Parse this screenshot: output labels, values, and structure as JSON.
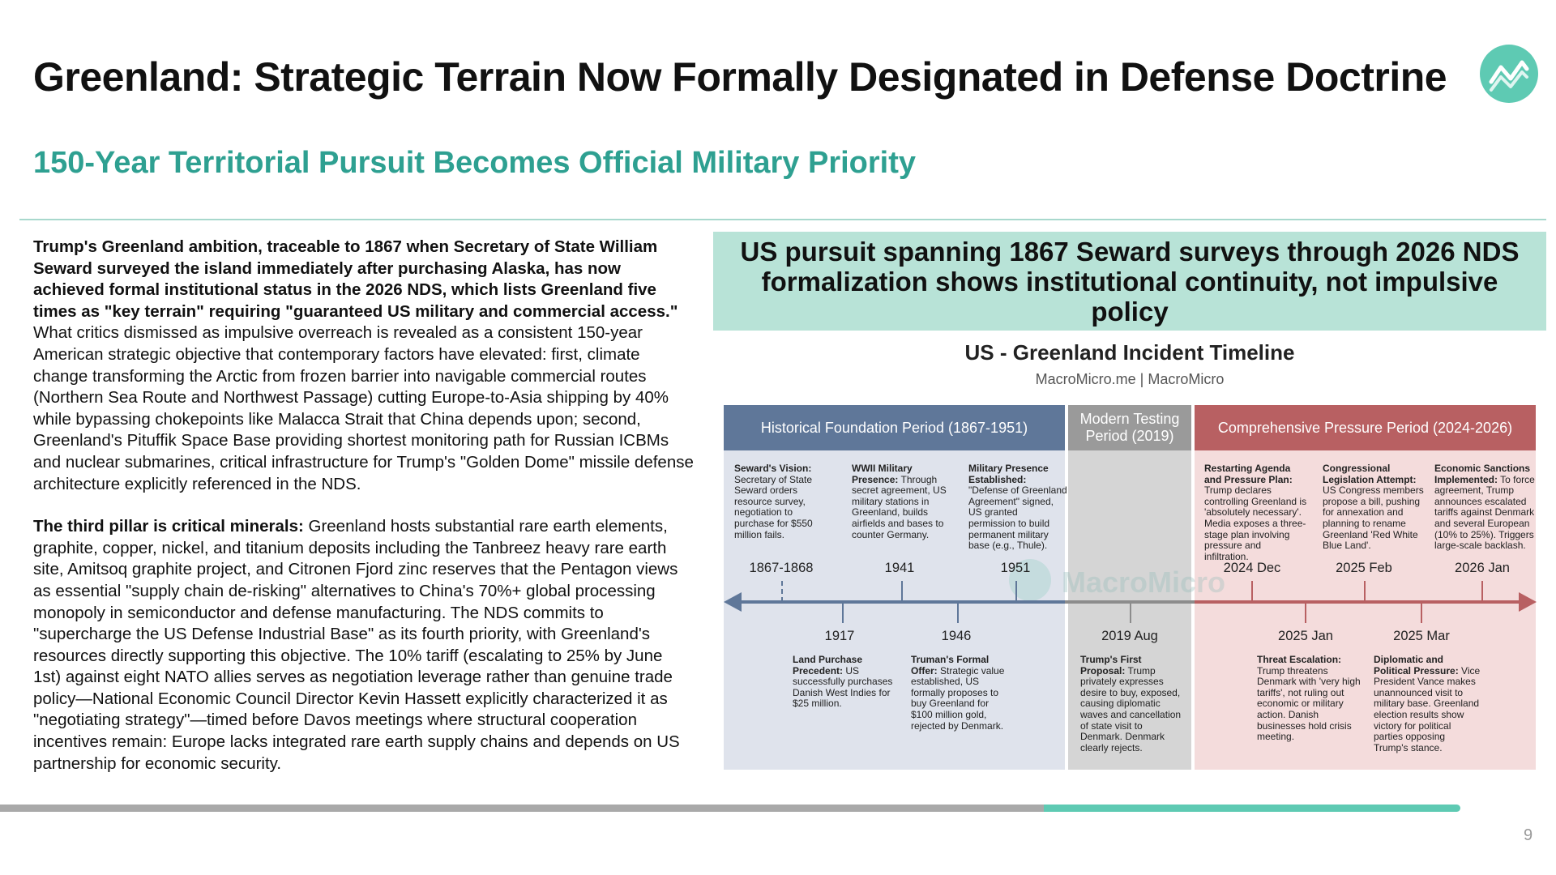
{
  "slide": {
    "title": "Greenland: Strategic Terrain Now Formally Designated in Defense Doctrine",
    "subtitle": "150-Year Territorial Pursuit Becomes Official Military Priority",
    "page_number": "9",
    "progress_fraction": 0.94,
    "accent_color": "#2ea091",
    "logo_icon": "trend-line-chart-icon"
  },
  "body": {
    "p1_bold": "Trump's Greenland ambition, traceable to 1867 when Secretary of State William Seward surveyed the island immediately after purchasing Alaska, has now achieved formal institutional status in the 2026 NDS, which lists Greenland five times as \"key terrain\" requiring \"guaranteed US military and commercial access.\"",
    "p1_rest": " What critics dismissed as impulsive overreach is revealed as a consistent 150-year American strategic objective that contemporary factors have elevated: first, climate change transforming the Arctic from frozen barrier into navigable commercial routes (Northern Sea Route and Northwest Passage) cutting Europe-to-Asia shipping by 40% while bypassing chokepoints like Malacca Strait that China depends upon; second, Greenland's Pituffik Space Base providing shortest monitoring path for Russian ICBMs and nuclear submarines, critical infrastructure for Trump's \"Golden Dome\" missile defense architecture explicitly referenced in the NDS.",
    "p2_bold": "The third pillar is critical minerals:",
    "p2_rest": " Greenland hosts substantial rare earth elements, graphite, copper, nickel, and titanium deposits including the Tanbreez heavy rare earth site, Amitsoq graphite project, and Citronen Fjord zinc reserves that the Pentagon views as essential \"supply chain de-risking\" alternatives to China's 70%+ global processing monopoly in semiconductor and defense manufacturing. The NDS commits to \"supercharge the US Defense Industrial Base\" as its fourth priority, with Greenland's resources directly supporting this objective. The 10% tariff (escalating to 25% by June 1st) against eight NATO allies serves as negotiation leverage rather than genuine trade policy—National Economic Council Director Kevin Hassett explicitly characterized it as \"negotiating strategy\"—timed before Davos meetings where structural cooperation incentives remain: Europe lacks integrated rare earth supply chains and depends on US partnership for economic security."
  },
  "banner": {
    "text": "US pursuit spanning 1867 Seward surveys through 2026 NDS formalization shows institutional continuity, not impulsive policy"
  },
  "timeline": {
    "title": "US - Greenland Incident Timeline",
    "source": "MacroMicro.me | MacroMicro",
    "watermark": "MacroMicro",
    "periods": [
      {
        "label": "Historical Foundation Period (1867-1951)",
        "color": "#5f7799"
      },
      {
        "label": "Modern Testing Period (2019)",
        "color": "#9a9a9a"
      },
      {
        "label": "Comprehensive Pressure Period (2024-2026)",
        "color": "#b86062"
      }
    ],
    "events": [
      {
        "date": "1867-1868",
        "heading": "Seward's Vision:",
        "text": " Secretary of State Seward orders resource survey, negotiation to purchase for $550 million fails."
      },
      {
        "date": "1917",
        "heading": "Land Purchase Precedent:",
        "text": " US successfully purchases Danish West Indies for $25 million."
      },
      {
        "date": "1941",
        "heading": "WWII Military Presence:",
        "text": " Through secret agreement, US military stations in Greenland, builds airfields and bases to counter Germany."
      },
      {
        "date": "1946",
        "heading": "Truman's Formal Offer:",
        "text": " Strategic value established, US formally proposes to buy Greenland for $100 million gold, rejected by Denmark."
      },
      {
        "date": "1951",
        "heading": "Military Presence Established:",
        "text": " \"Defense of Greenland Agreement\" signed, US granted permission to build permanent military base (e.g., Thule)."
      },
      {
        "date": "2019 Aug",
        "heading": "Trump's First Proposal:",
        "text": " Trump privately expresses desire to buy, exposed, causing diplomatic waves and cancellation of state visit to Denmark. Denmark clearly rejects."
      },
      {
        "date": "2024 Dec",
        "heading": "Restarting Agenda and Pressure Plan:",
        "text": " Trump declares controlling Greenland is 'absolutely necessary'. Media exposes a three-stage plan involving pressure and infiltration."
      },
      {
        "date": "2025 Jan",
        "heading": "Threat Escalation:",
        "text": " Trump threatens Denmark with 'very high tariffs', not ruling out economic or military action. Danish businesses hold crisis meeting."
      },
      {
        "date": "2025 Feb",
        "heading": "Congressional Legislation Attempt:",
        "text": " US Congress members propose a bill, pushing for annexation and planning to rename Greenland 'Red White Blue Land'."
      },
      {
        "date": "2025 Mar",
        "heading": "Diplomatic and Political Pressure:",
        "text": " Vice President Vance makes unannounced visit to military base. Greenland election results show victory for political parties opposing Trump's stance."
      },
      {
        "date": "2026 Jan",
        "heading": "Economic Sanctions Implemented:",
        "text": " To force agreement, Trump announces escalated tariffs against Denmark and several European (10% to 25%). Triggers large-scale backlash."
      }
    ]
  }
}
